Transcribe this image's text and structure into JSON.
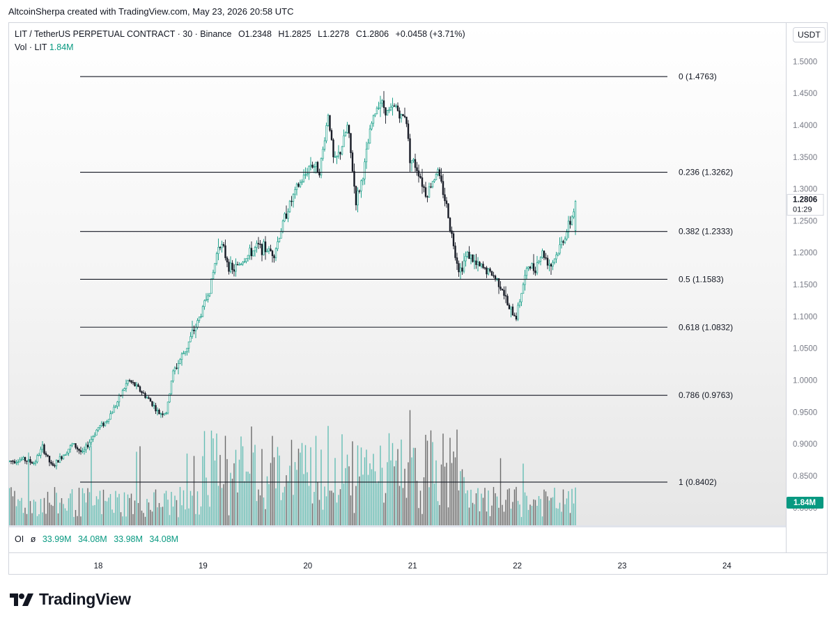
{
  "caption": "AltcoinSherpa created with TradingView.com, May 23, 2026 20:58 UTC",
  "legend": {
    "symbol": "LIT / TetherUS PERPETUAL CONTRACT · 30 · Binance",
    "open": "O1.2348",
    "high": "H1.2825",
    "low": "L1.2278",
    "close": "C1.2806",
    "change": "+0.0458 (+3.71%)",
    "vol_label": "Vol · LIT",
    "vol_value": "1.84M"
  },
  "oi": {
    "label": "OI",
    "symbol": "ø",
    "values": [
      "33.99M",
      "34.08M",
      "33.98M",
      "34.08M"
    ]
  },
  "currency_button": "USDT",
  "last_price": {
    "value": "1.2806",
    "countdown": "01:29"
  },
  "volume_badge": "1.84M",
  "brand": "TradingView",
  "colors": {
    "up": "#089981",
    "down": "#131722",
    "volume_up": "#4db6ac",
    "volume_down": "#555555",
    "fib_line": "#131722"
  },
  "chart_data": {
    "type": "candlestick",
    "price_axis": {
      "ticks": [
        "1.5000",
        "1.4500",
        "1.4000",
        "1.3500",
        "1.3000",
        "1.2500",
        "1.2000",
        "1.1500",
        "1.1000",
        "1.0500",
        "1.0000",
        "0.9500",
        "0.9000",
        "0.8500",
        "0.8000"
      ],
      "range": [
        0.8,
        1.5
      ]
    },
    "time_axis": {
      "ticks": [
        "18",
        "19",
        "20",
        "21",
        "22",
        "23",
        "24"
      ]
    },
    "fib_levels": [
      {
        "ratio": "0",
        "price": "1.4763",
        "label": "0 (1.4763)"
      },
      {
        "ratio": "0.236",
        "price": "1.3262",
        "label": "0.236 (1.3262)"
      },
      {
        "ratio": "0.382",
        "price": "1.2333",
        "label": "0.382 (1.2333)"
      },
      {
        "ratio": "0.5",
        "price": "1.1583",
        "label": "0.5 (1.1583)"
      },
      {
        "ratio": "0.618",
        "price": "1.0832",
        "label": "0.618 (1.0832)"
      },
      {
        "ratio": "0.786",
        "price": "0.9763",
        "label": "0.786 (0.9763)"
      },
      {
        "ratio": "1",
        "price": "0.8402",
        "label": "1 (0.8402)"
      }
    ],
    "price_path": [
      [
        0.0,
        0.873
      ],
      [
        0.5,
        0.876
      ],
      [
        0.9,
        0.87
      ],
      [
        1.2,
        0.895
      ],
      [
        1.55,
        0.863
      ],
      [
        1.8,
        0.876
      ],
      [
        2.3,
        0.9
      ],
      [
        2.65,
        0.885
      ],
      [
        3.2,
        0.925
      ],
      [
        3.5,
        0.935
      ],
      [
        3.9,
        0.965
      ],
      [
        4.3,
        1.0
      ],
      [
        4.6,
        0.99
      ],
      [
        5.15,
        0.965
      ],
      [
        5.4,
        0.948
      ],
      [
        5.7,
        0.95
      ],
      [
        5.9,
        1.01
      ],
      [
        6.4,
        1.05
      ],
      [
        6.9,
        1.1
      ],
      [
        7.3,
        1.15
      ],
      [
        7.6,
        1.22
      ],
      [
        8.05,
        1.17
      ],
      [
        8.5,
        1.19
      ],
      [
        9.0,
        1.21
      ],
      [
        9.6,
        1.2
      ],
      [
        10.0,
        1.26
      ],
      [
        10.4,
        1.3
      ],
      [
        10.7,
        1.32
      ],
      [
        10.9,
        1.34
      ],
      [
        11.25,
        1.33
      ],
      [
        11.55,
        1.42
      ],
      [
        11.75,
        1.34
      ],
      [
        12.0,
        1.36
      ],
      [
        12.25,
        1.4
      ],
      [
        12.55,
        1.28
      ],
      [
        12.8,
        1.32
      ],
      [
        13.1,
        1.4
      ],
      [
        13.4,
        1.44
      ],
      [
        13.7,
        1.42
      ],
      [
        14.0,
        1.43
      ],
      [
        14.2,
        1.41
      ],
      [
        14.35,
        1.42
      ],
      [
        14.5,
        1.35
      ],
      [
        14.8,
        1.33
      ],
      [
        15.1,
        1.29
      ],
      [
        15.5,
        1.33
      ],
      [
        15.8,
        1.28
      ],
      [
        16.05,
        1.22
      ],
      [
        16.3,
        1.17
      ],
      [
        16.6,
        1.2
      ],
      [
        16.9,
        1.18
      ],
      [
        17.2,
        1.175
      ],
      [
        17.5,
        1.165
      ],
      [
        17.8,
        1.15
      ],
      [
        18.1,
        1.11
      ],
      [
        18.35,
        1.1
      ],
      [
        18.6,
        1.15
      ],
      [
        18.8,
        1.18
      ],
      [
        19.0,
        1.175
      ],
      [
        19.3,
        1.2
      ],
      [
        19.6,
        1.18
      ],
      [
        19.85,
        1.2
      ],
      [
        20.05,
        1.22
      ],
      [
        20.25,
        1.24
      ],
      [
        20.4,
        1.26
      ],
      [
        20.5,
        1.2806
      ]
    ],
    "open_interest": [
      "33.99M",
      "34.08M",
      "33.98M",
      "34.08M"
    ]
  }
}
